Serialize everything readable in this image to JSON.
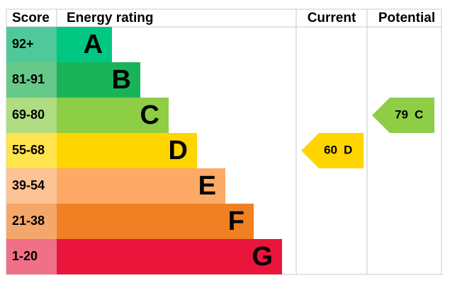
{
  "header": {
    "score": "Score",
    "rating": "Energy rating",
    "current": "Current",
    "potential": "Potential"
  },
  "rows": [
    {
      "score": "92+",
      "letter": "A",
      "color": "#00c781",
      "score_color": "#4fc99a"
    },
    {
      "score": "81-91",
      "letter": "B",
      "color": "#19b459",
      "score_color": "#66c98a"
    },
    {
      "score": "69-80",
      "letter": "C",
      "color": "#8dce46",
      "score_color": "#b0dc82"
    },
    {
      "score": "55-68",
      "letter": "D",
      "color": "#ffd500",
      "score_color": "#ffe44d"
    },
    {
      "score": "39-54",
      "letter": "E",
      "color": "#fcaa65",
      "score_color": "#fdc394"
    },
    {
      "score": "21-38",
      "letter": "F",
      "color": "#ef8023",
      "score_color": "#f4a76a"
    },
    {
      "score": "1-20",
      "letter": "G",
      "color": "#e9153b",
      "score_color": "#f07087"
    }
  ],
  "current": {
    "value": 60,
    "letter": "D"
  },
  "potential": {
    "value": 79,
    "letter": "C"
  }
}
